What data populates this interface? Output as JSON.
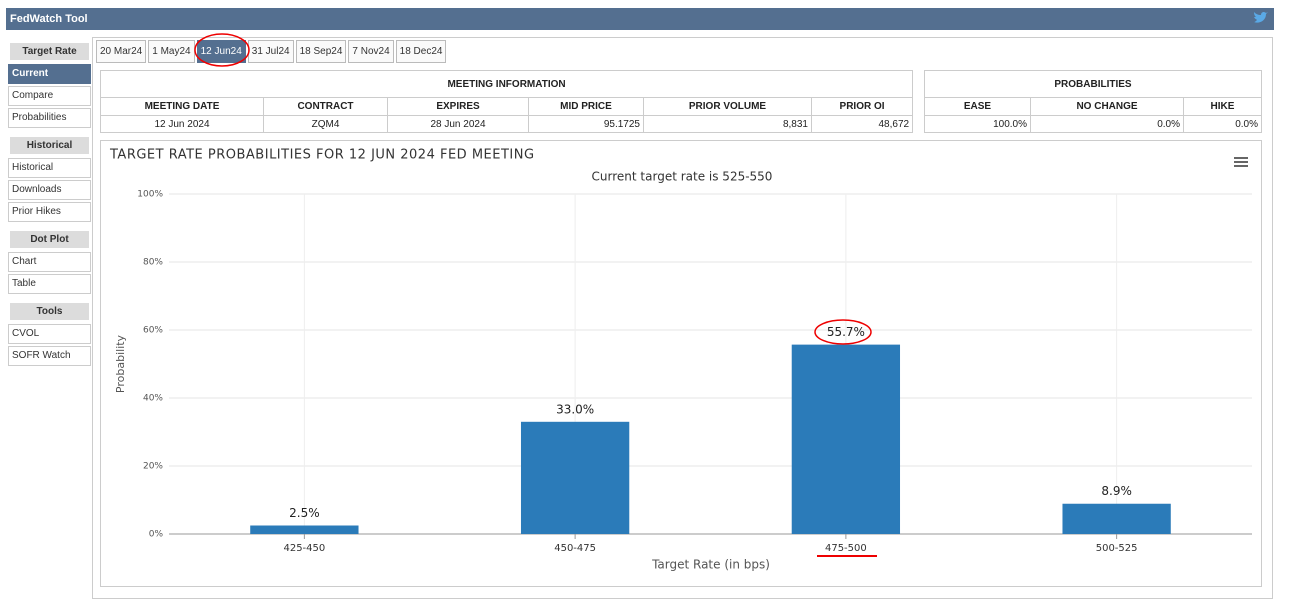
{
  "header": {
    "title": "FedWatch Tool"
  },
  "sidebar": [
    {
      "heading": "Target Rate",
      "items": [
        "Current",
        "Compare",
        "Probabilities"
      ]
    },
    {
      "heading": "Historical",
      "items": [
        "Historical",
        "Downloads",
        "Prior Hikes"
      ]
    },
    {
      "heading": "Dot Plot",
      "items": [
        "Chart",
        "Table"
      ]
    },
    {
      "heading": "Tools",
      "items": [
        "CVOL",
        "SOFR Watch"
      ]
    }
  ],
  "active_item": [
    0,
    0
  ],
  "tabs": [
    "20 Mar24",
    "1 May24",
    "12 Jun24",
    "31 Jul24",
    "18 Sep24",
    "7 Nov24",
    "18 Dec24"
  ],
  "active_tab": 2,
  "meeting_info": {
    "title": "MEETING INFORMATION",
    "columns": [
      "MEETING DATE",
      "CONTRACT",
      "EXPIRES",
      "MID PRICE",
      "PRIOR VOLUME",
      "PRIOR OI"
    ],
    "row": [
      "12 Jun 2024",
      "ZQM4",
      "28 Jun 2024",
      "95.1725",
      "8,831",
      "48,672"
    ]
  },
  "probabilities": {
    "title": "PROBABILITIES",
    "columns": [
      "EASE",
      "NO CHANGE",
      "HIKE"
    ],
    "row": [
      "100.0%",
      "0.0%",
      "0.0%"
    ]
  },
  "chart_data": {
    "type": "bar",
    "title": "TARGET RATE PROBABILITIES FOR 12 JUN 2024 FED MEETING",
    "subtitle": "Current target rate is 525-550",
    "x_label": "Target Rate (in bps)",
    "y_label": "Probability",
    "categories": [
      "425-450",
      "450-475",
      "475-500",
      "500-525"
    ],
    "values": [
      2.5,
      33.0,
      55.7,
      8.9
    ],
    "value_labels": [
      "2.5%",
      "33.0%",
      "55.7%",
      "8.9%"
    ],
    "color": "#2b7bb9",
    "ylim": [
      0,
      100
    ],
    "yticks": [
      {
        "value": 0,
        "label": "0%"
      },
      {
        "value": 20,
        "label": "20%"
      },
      {
        "value": 40,
        "label": "40%"
      },
      {
        "value": 60,
        "label": "60%"
      },
      {
        "value": 80,
        "label": "80%"
      },
      {
        "value": 100,
        "label": "100%"
      }
    ],
    "grid": true
  }
}
